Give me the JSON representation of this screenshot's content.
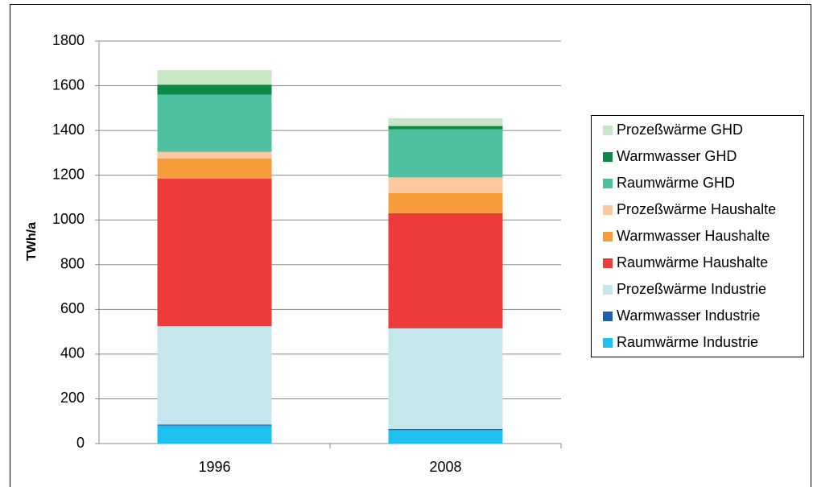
{
  "chart_data": {
    "type": "bar",
    "stacked": true,
    "y_label": "TWh/a",
    "categories": [
      "1996",
      "2008"
    ],
    "series": [
      {
        "name": "Raumwärme Industrie",
        "color": "#1ec0f0",
        "values": [
          80,
          60
        ]
      },
      {
        "name": "Warmwasser Industrie",
        "color": "#1f5fae",
        "values": [
          5,
          5
        ]
      },
      {
        "name": "Prozeßwärme Industrie",
        "color": "#c6e6ee",
        "values": [
          440,
          450
        ]
      },
      {
        "name": "Raumwärme Haushalte",
        "color": "#ee3a3a",
        "values": [
          660,
          515
        ]
      },
      {
        "name": "Warmwasser Haushalte",
        "color": "#f79c3a",
        "values": [
          90,
          90
        ]
      },
      {
        "name": "Prozeßwärme Haushalte",
        "color": "#fbc8a0",
        "values": [
          30,
          70
        ]
      },
      {
        "name": "Raumwärme GHD",
        "color": "#4dc0a0",
        "values": [
          255,
          215
        ]
      },
      {
        "name": "Warmwasser GHD",
        "color": "#0a8a44",
        "values": [
          45,
          15
        ]
      },
      {
        "name": "Prozeßwärme GHD",
        "color": "#c6e6c6",
        "values": [
          65,
          35
        ]
      }
    ],
    "ylim": [
      0,
      1800
    ],
    "yticks": [
      0,
      200,
      400,
      600,
      800,
      1000,
      1200,
      1400,
      1600,
      1800
    ],
    "grid": true,
    "legend": "right"
  }
}
